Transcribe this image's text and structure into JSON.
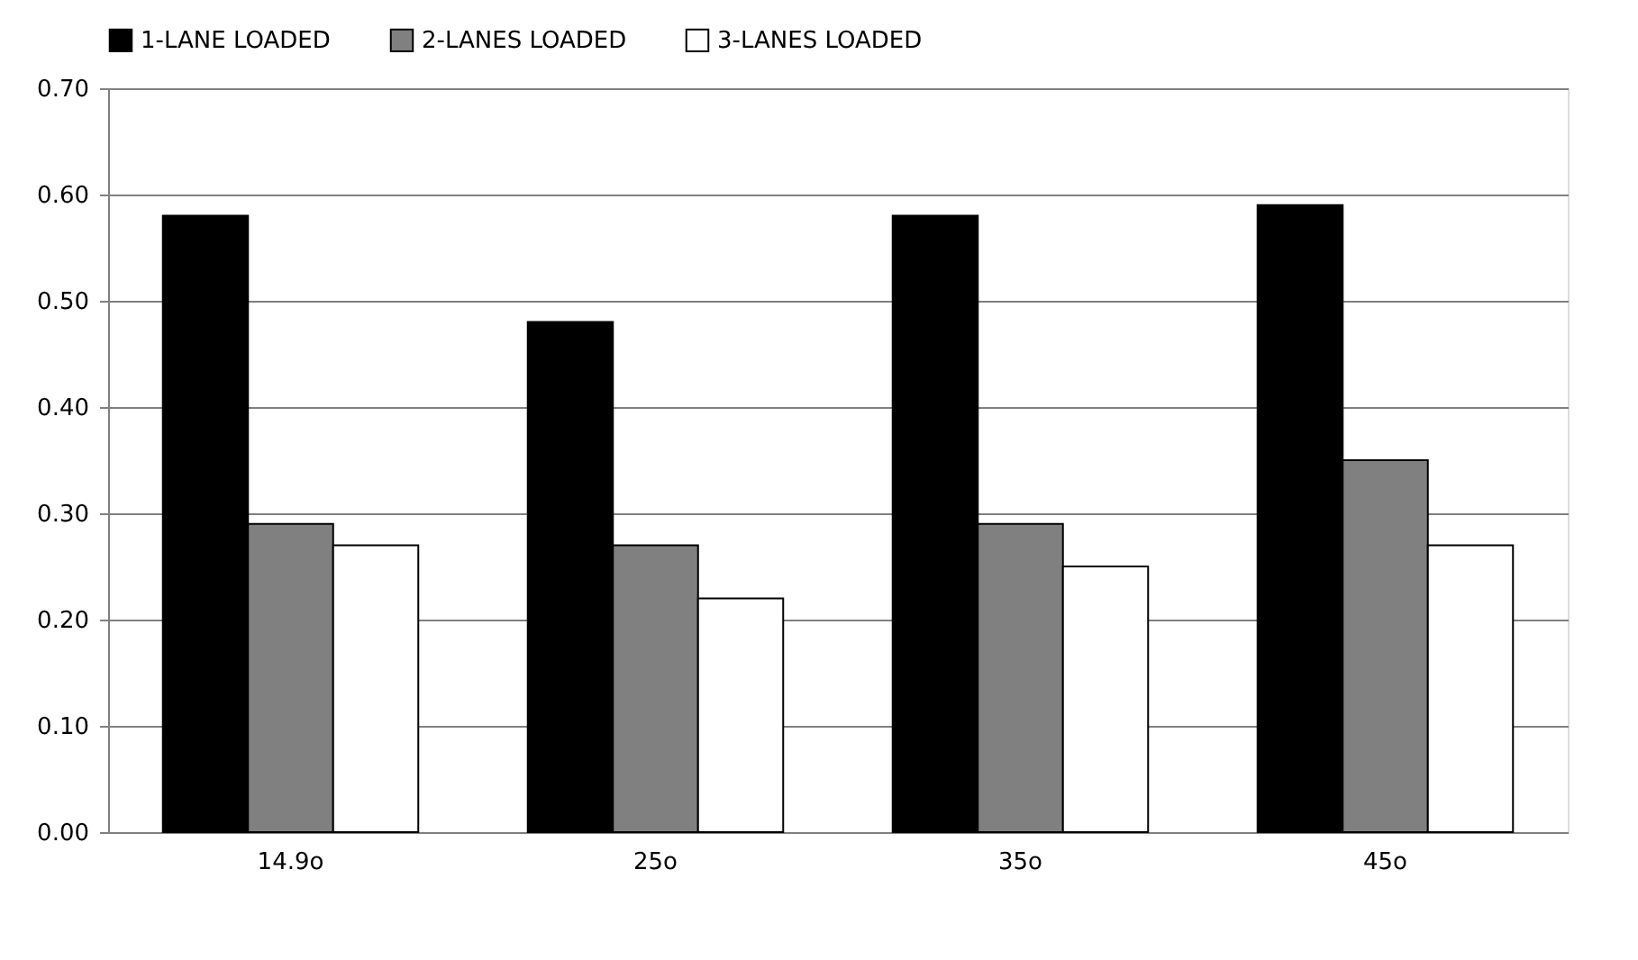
{
  "chart_data": {
    "type": "bar",
    "categories": [
      "14.9o",
      "25o",
      "35o",
      "45o"
    ],
    "series": [
      {
        "name": "1-LANE LOADED",
        "color": "#000000",
        "values": [
          0.58,
          0.48,
          0.58,
          0.59
        ]
      },
      {
        "name": "2-LANES LOADED",
        "color": "#808080",
        "values": [
          0.29,
          0.27,
          0.29,
          0.35
        ]
      },
      {
        "name": "3-LANES LOADED",
        "color": "#ffffff",
        "values": [
          0.27,
          0.22,
          0.25,
          0.27
        ]
      }
    ],
    "ylim": [
      0,
      0.7
    ],
    "yticks": [
      {
        "value": 0,
        "label": "0.00"
      },
      {
        "value": 0.1,
        "label": "0.10"
      },
      {
        "value": 0.2,
        "label": "0.20"
      },
      {
        "value": 0.3,
        "label": "0.30"
      },
      {
        "value": 0.4,
        "label": "0.40"
      },
      {
        "value": 0.5,
        "label": "0.50"
      },
      {
        "value": 0.6,
        "label": "0.60"
      },
      {
        "value": 0.7,
        "label": "0.70"
      }
    ],
    "grid": "y",
    "legend": "top"
  }
}
